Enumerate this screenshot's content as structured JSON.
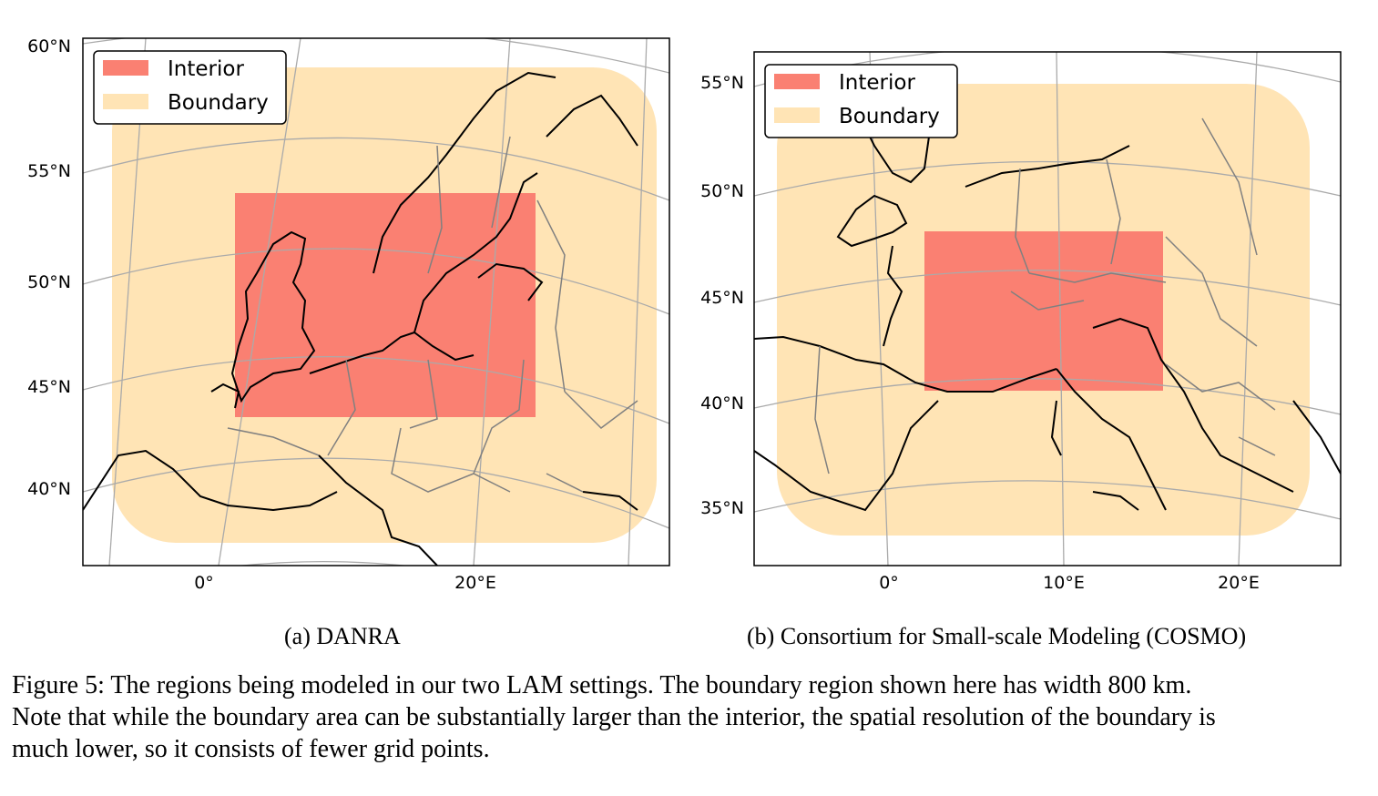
{
  "figure": {
    "panels": [
      {
        "id": "a",
        "subcaption": "(a) DANRA",
        "lat_labels": [
          "60°N",
          "55°N",
          "50°N",
          "45°N",
          "40°N"
        ],
        "lon_labels": [
          "0°",
          "20°E"
        ],
        "legend": {
          "interior": "Interior",
          "boundary": "Boundary"
        }
      },
      {
        "id": "b",
        "subcaption": "(b) Consortium for Small-scale Modeling (COSMO)",
        "lat_labels": [
          "55°N",
          "50°N",
          "45°N",
          "40°N",
          "35°N"
        ],
        "lon_labels": [
          "0°",
          "10°E",
          "20°E"
        ],
        "legend": {
          "interior": "Interior",
          "boundary": "Boundary"
        }
      }
    ],
    "colors": {
      "interior": "#fa8072",
      "boundary": "#ffe4b5",
      "grid": "#aaaaaa",
      "coast": "#000000",
      "border": "#808080"
    },
    "caption_lines": [
      "Figure 5: The regions being modeled in our two LAM settings. The boundary region shown here has width 800 km.",
      "Note that while the boundary area can be substantially larger than the interior, the spatial resolution of the boundary is",
      "much lower, so it consists of fewer grid points."
    ]
  }
}
